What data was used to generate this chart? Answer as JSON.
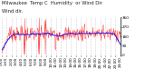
{
  "title": "Milwaukee  Temp C  Humidity  or Wind Dir",
  "subtitle": "Wind dir.",
  "bg_color": "#ffffff",
  "plot_bg": "#ffffff",
  "grid_color": "#aaaaaa",
  "line_color_raw": "#ff0000",
  "line_color_avg": "#0000ff",
  "ylim": [
    0,
    360
  ],
  "yticks": [
    0,
    90,
    180,
    270,
    360
  ],
  "n_points": 288,
  "title_fontsize": 3.8,
  "tick_fontsize": 3.0
}
